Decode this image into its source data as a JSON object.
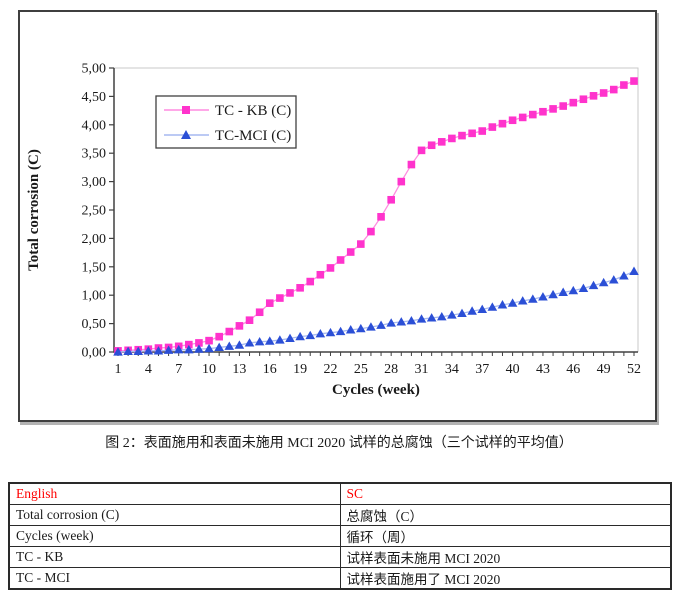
{
  "figure_caption": "图 2：表面施用和表面未施用 MCI 2020 试样的总腐蚀（三个试样的平均值）",
  "chart_data": {
    "type": "line",
    "xlabel": "Cycles (week)",
    "ylabel": "Total corrosion (C)",
    "xlim": [
      1,
      52
    ],
    "ylim": [
      0,
      5
    ],
    "grid": false,
    "legend_position": "top-left-inside",
    "decimal_separator": ",",
    "y_tick_labels": [
      "5,00",
      "4,50",
      "4,00",
      "3,50",
      "3,00",
      "2,50",
      "2,00",
      "1,50",
      "1,00",
      "0,50",
      "0,00"
    ],
    "x_tick_labels": [
      1,
      4,
      7,
      10,
      13,
      16,
      19,
      22,
      25,
      28,
      31,
      34,
      37,
      40,
      43,
      46,
      49,
      52
    ],
    "x": [
      1,
      2,
      3,
      4,
      5,
      6,
      7,
      8,
      9,
      10,
      11,
      12,
      13,
      14,
      15,
      16,
      17,
      18,
      19,
      20,
      21,
      22,
      23,
      24,
      25,
      26,
      27,
      28,
      29,
      30,
      31,
      32,
      33,
      34,
      35,
      36,
      37,
      38,
      39,
      40,
      41,
      42,
      43,
      44,
      45,
      46,
      47,
      48,
      49,
      50,
      51,
      52
    ],
    "series": [
      {
        "id": "tc-kb",
        "name": "TC - KB (C)",
        "marker": "square",
        "marker_color": "#FF33CC",
        "line_color": "#FF8CE0",
        "values": [
          0.02,
          0.03,
          0.04,
          0.05,
          0.07,
          0.08,
          0.1,
          0.13,
          0.16,
          0.2,
          0.27,
          0.36,
          0.46,
          0.56,
          0.7,
          0.86,
          0.95,
          1.04,
          1.13,
          1.24,
          1.36,
          1.48,
          1.62,
          1.76,
          1.9,
          2.12,
          2.38,
          2.68,
          3.0,
          3.3,
          3.55,
          3.64,
          3.7,
          3.76,
          3.81,
          3.85,
          3.89,
          3.96,
          4.02,
          4.08,
          4.13,
          4.18,
          4.23,
          4.28,
          4.33,
          4.39,
          4.45,
          4.51,
          4.56,
          4.62,
          4.7,
          4.77
        ]
      },
      {
        "id": "tc-mci",
        "name": "TC-MCI (C)",
        "marker": "triangle",
        "marker_color": "#2B4FD6",
        "line_color": "#A6B8F0",
        "values": [
          0.0,
          0.01,
          0.01,
          0.02,
          0.02,
          0.03,
          0.04,
          0.04,
          0.05,
          0.06,
          0.08,
          0.1,
          0.12,
          0.16,
          0.18,
          0.19,
          0.21,
          0.24,
          0.27,
          0.29,
          0.32,
          0.34,
          0.36,
          0.39,
          0.41,
          0.44,
          0.47,
          0.51,
          0.53,
          0.55,
          0.58,
          0.6,
          0.62,
          0.65,
          0.68,
          0.72,
          0.75,
          0.79,
          0.83,
          0.86,
          0.9,
          0.93,
          0.97,
          1.01,
          1.05,
          1.08,
          1.12,
          1.17,
          1.22,
          1.27,
          1.34,
          1.42
        ]
      }
    ]
  },
  "translation_table": {
    "header_color": "#FF0000",
    "headers": [
      "English",
      "SC"
    ],
    "rows": [
      [
        "Total corrosion (C)",
        "总腐蚀（C）"
      ],
      [
        "Cycles (week)",
        "循环（周）"
      ],
      [
        "TC - KB",
        "试样表面未施用 MCI 2020"
      ],
      [
        "TC - MCI",
        "试样表面施用了 MCI 2020"
      ]
    ]
  }
}
